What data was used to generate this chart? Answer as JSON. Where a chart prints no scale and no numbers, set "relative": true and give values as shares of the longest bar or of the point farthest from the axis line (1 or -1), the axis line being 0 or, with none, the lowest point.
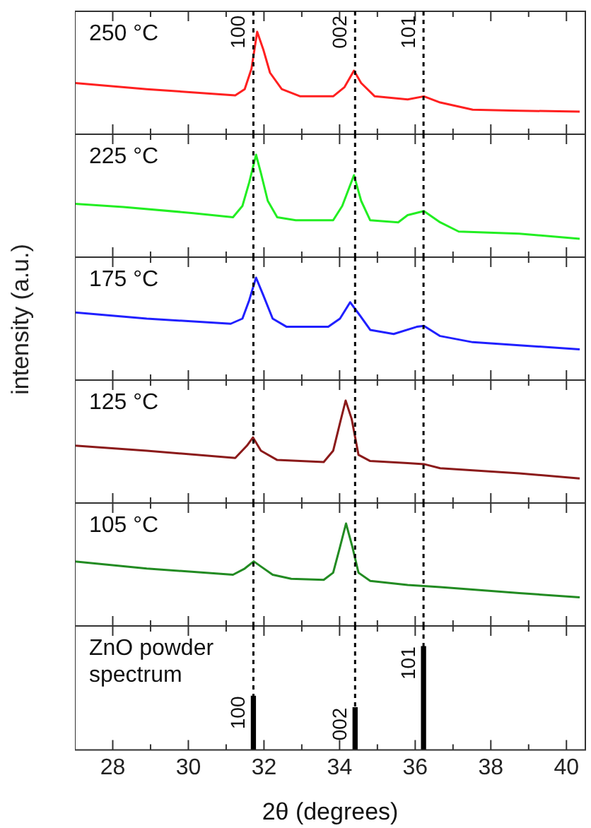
{
  "chart_data": [
    {
      "type": "line",
      "relative": true,
      "xlim": [
        27,
        40.5
      ],
      "tick_labels": false,
      "annotations": [
        "250 °C",
        {
          "text": "100",
          "x": 31.72
        },
        {
          "text": "002",
          "x": 34.41
        },
        {
          "text": "101",
          "x": 36.22
        }
      ],
      "xticks": [
        28,
        {
          "value": 29,
          "label": null
        },
        30,
        {
          "value": 31,
          "label": null
        },
        32,
        {
          "value": 33,
          "label": null
        },
        34,
        {
          "value": 35,
          "label": null
        },
        36,
        {
          "value": 37,
          "label": null
        },
        38,
        {
          "value": 39,
          "label": null
        },
        40
      ],
      "ref_lines": [
        {
          "axis": "x",
          "value": 31.72,
          "line_style": "dashed",
          "color": "#000000"
        },
        {
          "axis": "x",
          "value": 34.41,
          "line_style": "dashed",
          "color": "#000000"
        },
        {
          "axis": "x",
          "value": 36.22,
          "line_style": "dashed",
          "color": "#000000"
        }
      ],
      "series": [
        {
          "color": "#ff2020",
          "x": [
            27.0,
            28.9,
            31.24,
            31.49,
            31.67,
            31.82,
            31.98,
            32.16,
            32.47,
            32.96,
            33.83,
            34.13,
            34.38,
            34.57,
            34.93,
            35.8,
            36.23,
            36.66,
            37.52,
            38.75,
            40.35
          ],
          "values": [
            0.5,
            0.44,
            0.38,
            0.44,
            0.64,
            1,
            0.83,
            0.6,
            0.44,
            0.37,
            0.37,
            0.46,
            0.62,
            0.5,
            0.37,
            0.34,
            0.37,
            0.31,
            0.24,
            0.23,
            0.22
          ]
        }
      ]
    },
    {
      "type": "line",
      "relative": true,
      "xlim": [
        27,
        40.5
      ],
      "tick_labels": false,
      "annotations": [
        "225 °C"
      ],
      "xticks": [
        28,
        {
          "value": 29,
          "label": null
        },
        30,
        {
          "value": 31,
          "label": null
        },
        32,
        {
          "value": 33,
          "label": null
        },
        34,
        {
          "value": 35,
          "label": null
        },
        36,
        {
          "value": 37,
          "label": null
        },
        38,
        {
          "value": 39,
          "label": null
        },
        40
      ],
      "ref_lines": [
        {
          "axis": "x",
          "value": 31.72,
          "line_style": "dashed",
          "color": "#000000"
        },
        {
          "axis": "x",
          "value": 34.41,
          "line_style": "dashed",
          "color": "#000000"
        },
        {
          "axis": "x",
          "value": 36.22,
          "line_style": "dashed",
          "color": "#000000"
        }
      ],
      "series": [
        {
          "color": "#22ee22",
          "x": [
            27.0,
            28.28,
            30.13,
            31.18,
            31.43,
            31.61,
            31.79,
            31.92,
            32.1,
            32.35,
            32.84,
            33.83,
            34.07,
            34.38,
            34.57,
            34.81,
            35.55,
            35.8,
            36.23,
            36.66,
            37.15,
            38.75,
            40.35
          ],
          "values": [
            0.52,
            0.49,
            0.43,
            0.39,
            0.5,
            0.73,
            1,
            0.82,
            0.55,
            0.39,
            0.36,
            0.36,
            0.5,
            0.8,
            0.55,
            0.36,
            0.34,
            0.41,
            0.45,
            0.34,
            0.25,
            0.23,
            0.18
          ]
        }
      ]
    },
    {
      "type": "line",
      "relative": true,
      "xlim": [
        27,
        40.5
      ],
      "tick_labels": false,
      "annotations": [
        "175 °C"
      ],
      "ylabel": "intensity (a.u.)",
      "xticks": [
        28,
        {
          "value": 29,
          "label": null
        },
        30,
        {
          "value": 31,
          "label": null
        },
        32,
        {
          "value": 33,
          "label": null
        },
        34,
        {
          "value": 35,
          "label": null
        },
        36,
        {
          "value": 37,
          "label": null
        },
        38,
        {
          "value": 39,
          "label": null
        },
        40
      ],
      "ref_lines": [
        {
          "axis": "x",
          "value": 31.72,
          "line_style": "dashed",
          "color": "#000000"
        },
        {
          "axis": "x",
          "value": 34.41,
          "line_style": "dashed",
          "color": "#000000"
        },
        {
          "axis": "x",
          "value": 36.22,
          "line_style": "dashed",
          "color": "#000000"
        }
      ],
      "series": [
        {
          "color": "#2020ff",
          "x": [
            27.0,
            28.9,
            31.12,
            31.43,
            31.61,
            31.79,
            31.98,
            32.23,
            32.6,
            33.7,
            34.01,
            34.28,
            34.5,
            34.81,
            35.43,
            36.04,
            36.23,
            36.66,
            37.52,
            38.75,
            40.35
          ],
          "values": [
            0.66,
            0.6,
            0.55,
            0.6,
            0.78,
            1,
            0.83,
            0.6,
            0.52,
            0.52,
            0.6,
            0.76,
            0.65,
            0.49,
            0.45,
            0.52,
            0.53,
            0.43,
            0.37,
            0.34,
            0.3
          ]
        }
      ]
    },
    {
      "type": "line",
      "relative": true,
      "xlim": [
        27,
        40.5
      ],
      "tick_labels": false,
      "annotations": [
        "125 °C"
      ],
      "xticks": [
        28,
        {
          "value": 29,
          "label": null
        },
        30,
        {
          "value": 31,
          "label": null
        },
        32,
        {
          "value": 33,
          "label": null
        },
        34,
        {
          "value": 35,
          "label": null
        },
        36,
        {
          "value": 37,
          "label": null
        },
        38,
        {
          "value": 39,
          "label": null
        },
        40
      ],
      "ref_lines": [
        {
          "axis": "x",
          "value": 31.72,
          "line_style": "dashed",
          "color": "#000000"
        },
        {
          "axis": "x",
          "value": 34.41,
          "line_style": "dashed",
          "color": "#000000"
        },
        {
          "axis": "x",
          "value": 36.22,
          "line_style": "dashed",
          "color": "#000000"
        }
      ],
      "series": [
        {
          "color": "#8b1a1a",
          "x": [
            27.0,
            28.9,
            31.24,
            31.55,
            31.71,
            31.92,
            32.35,
            33.58,
            33.83,
            34.01,
            34.16,
            34.32,
            34.5,
            34.81,
            35.8,
            36.23,
            36.66,
            38.75,
            40.35
          ],
          "values": [
            0.56,
            0.51,
            0.44,
            0.56,
            0.64,
            0.51,
            0.42,
            0.4,
            0.51,
            0.78,
            1,
            0.82,
            0.47,
            0.41,
            0.39,
            0.38,
            0.34,
            0.29,
            0.24
          ]
        }
      ]
    },
    {
      "type": "line",
      "relative": true,
      "xlim": [
        27,
        40.5
      ],
      "tick_labels": false,
      "annotations": [
        "105 °C"
      ],
      "xticks": [
        28,
        {
          "value": 29,
          "label": null
        },
        30,
        {
          "value": 31,
          "label": null
        },
        32,
        {
          "value": 33,
          "label": null
        },
        34,
        {
          "value": 35,
          "label": null
        },
        36,
        {
          "value": 37,
          "label": null
        },
        38,
        {
          "value": 39,
          "label": null
        },
        40
      ],
      "ref_lines": [
        {
          "axis": "x",
          "value": 31.72,
          "line_style": "dashed",
          "color": "#000000"
        },
        {
          "axis": "x",
          "value": 34.41,
          "line_style": "dashed",
          "color": "#000000"
        },
        {
          "axis": "x",
          "value": 36.22,
          "line_style": "dashed",
          "color": "#000000"
        }
      ],
      "series": [
        {
          "color": "#228b22",
          "x": [
            27.0,
            28.9,
            31.18,
            31.49,
            31.73,
            31.92,
            32.23,
            32.72,
            33.58,
            33.83,
            34.01,
            34.17,
            34.34,
            34.5,
            34.81,
            35.8,
            36.66,
            38.75,
            40.35
          ],
          "values": [
            0.63,
            0.56,
            0.5,
            0.56,
            0.63,
            0.58,
            0.5,
            0.46,
            0.45,
            0.52,
            0.77,
            1,
            0.77,
            0.52,
            0.44,
            0.4,
            0.38,
            0.32,
            0.28
          ]
        }
      ]
    },
    {
      "type": "bar",
      "relative": true,
      "xlim": [
        27,
        40.5
      ],
      "tick_labels": "x",
      "xlabel": "2θ (degrees)",
      "annotations": [
        "ZnO powder spectrum",
        {
          "text": "100",
          "x": 31.72,
          "y": 0.52
        },
        {
          "text": "002",
          "x": 34.41,
          "y": 0.41
        },
        {
          "text": "101",
          "x": 36.22,
          "y": 1
        }
      ],
      "xticks": [
        28,
        {
          "value": 29,
          "label": null
        },
        30,
        {
          "value": 31,
          "label": null
        },
        32,
        {
          "value": 33,
          "label": null
        },
        34,
        {
          "value": 35,
          "label": null
        },
        36,
        {
          "value": 37,
          "label": null
        },
        38,
        {
          "value": 39,
          "label": null
        },
        40
      ],
      "ref_lines": [
        {
          "axis": "x",
          "value": 31.72,
          "line_style": "dashed",
          "color": "#000000"
        },
        {
          "axis": "x",
          "value": 34.41,
          "line_style": "dashed",
          "color": "#000000"
        },
        {
          "axis": "x",
          "value": 36.22,
          "line_style": "dashed",
          "color": "#000000"
        }
      ],
      "series": [
        {
          "color": "#000000",
          "x": [
            31.72,
            34.41,
            36.22
          ],
          "values": [
            0.52,
            0.41,
            1
          ]
        }
      ]
    }
  ]
}
